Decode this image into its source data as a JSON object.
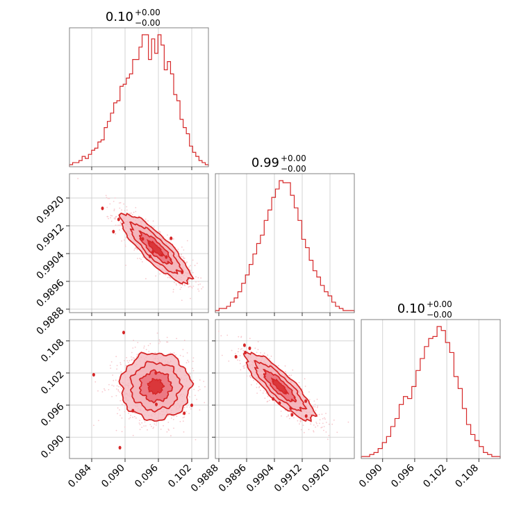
{
  "colors": {
    "series": "#d62728",
    "fill_outer": "#f4b6bc",
    "fill_inner": "#e8616c",
    "points": "#f7c8cd",
    "grid": "#c8c8c8",
    "frame": "#808080"
  },
  "chart_data": [
    {
      "type": "histogram",
      "panel": "diagonal-1",
      "title": {
        "value": "0.10",
        "plus": "+0.00",
        "minus": "−0.00"
      },
      "xlim": [
        0.08,
        0.105
      ],
      "x_ticks": [
        0.084,
        0.09,
        0.096,
        0.102
      ],
      "x_tick_labels": [
        "0.084",
        "0.090",
        "0.096",
        "0.102"
      ],
      "bin_edges_range": [
        0.08,
        0.105
      ],
      "counts": [
        1,
        2,
        2,
        3,
        5,
        4,
        6,
        8,
        9,
        12,
        13,
        19,
        22,
        26,
        31,
        32,
        39,
        40,
        43,
        45,
        52,
        52,
        58,
        64,
        64,
        52,
        62,
        55,
        64,
        59,
        47,
        51,
        45,
        35,
        32,
        23,
        19,
        16,
        10,
        7,
        5,
        3,
        2,
        1
      ],
      "grid": true
    },
    {
      "type": "histogram",
      "panel": "diagonal-2",
      "title": {
        "value": "0.99",
        "plus": "+0.00",
        "minus": "−0.00"
      },
      "xlim": [
        0.9887,
        0.9927
      ],
      "x_ticks": [
        0.9888,
        0.9896,
        0.9904,
        0.9912,
        0.992
      ],
      "x_tick_labels": [
        "0.9888",
        "0.9896",
        "0.9904",
        "0.9912",
        "0.9920"
      ],
      "bin_edges_range": [
        0.9887,
        0.9927
      ],
      "counts": [
        1,
        2,
        2,
        3,
        5,
        7,
        10,
        14,
        18,
        23,
        28,
        33,
        37,
        44,
        49,
        55,
        59,
        63,
        62,
        62,
        56,
        50,
        44,
        35,
        31,
        25,
        20,
        17,
        13,
        10,
        8,
        5,
        3,
        2,
        1,
        1,
        1
      ],
      "grid": true
    },
    {
      "type": "histogram",
      "panel": "diagonal-3",
      "title": {
        "value": "0.10",
        "plus": "+0.00",
        "minus": "−0.00"
      },
      "xlim": [
        0.086,
        0.112
      ],
      "x_ticks": [
        0.09,
        0.096,
        0.102,
        0.108
      ],
      "x_tick_labels": [
        "0.090",
        "0.096",
        "0.102",
        "0.108"
      ],
      "bin_edges_range": [
        0.086,
        0.112
      ],
      "counts": [
        1,
        1,
        2,
        3,
        5,
        8,
        11,
        16,
        20,
        27,
        31,
        30,
        36,
        44,
        50,
        56,
        60,
        61,
        66,
        64,
        58,
        53,
        41,
        35,
        25,
        17,
        12,
        9,
        6,
        3,
        2,
        1,
        1
      ],
      "grid": true
    },
    {
      "type": "contour-scatter",
      "panel": "row2-col1",
      "x_param": 1,
      "y_param": 2,
      "xlim": [
        0.08,
        0.105
      ],
      "ylim": [
        0.9887,
        0.9927
      ],
      "x_ticks": [
        0.084,
        0.09,
        0.096,
        0.102
      ],
      "y_ticks": [
        0.9888,
        0.9896,
        0.9904,
        0.9912,
        0.992
      ],
      "y_tick_labels": [
        "0.9888",
        "0.9896",
        "0.9904",
        "0.9912",
        "0.9920"
      ],
      "center": [
        0.0955,
        0.99055
      ],
      "sd": [
        0.0033,
        0.00052
      ],
      "correlation": -0.85,
      "grid": true
    },
    {
      "type": "contour-scatter",
      "panel": "row3-col1",
      "x_param": 1,
      "y_param": 3,
      "xlim": [
        0.08,
        0.105
      ],
      "ylim": [
        0.086,
        0.112
      ],
      "x_ticks": [
        0.084,
        0.09,
        0.096,
        0.102
      ],
      "y_ticks": [
        0.09,
        0.096,
        0.102,
        0.108
      ],
      "y_tick_labels": [
        "0.090",
        "0.096",
        "0.102",
        "0.108"
      ],
      "center": [
        0.0955,
        0.0995
      ],
      "sd": [
        0.0033,
        0.0033
      ],
      "correlation": 0.0,
      "grid": true
    },
    {
      "type": "contour-scatter",
      "panel": "row3-col2",
      "x_param": 2,
      "y_param": 3,
      "xlim": [
        0.9887,
        0.9927
      ],
      "ylim": [
        0.086,
        0.112
      ],
      "x_ticks": [
        0.9888,
        0.9896,
        0.9904,
        0.9912,
        0.992
      ],
      "y_ticks": [
        0.09,
        0.096,
        0.102,
        0.108
      ],
      "center": [
        0.99055,
        0.0995
      ],
      "sd": [
        0.00052,
        0.0033
      ],
      "correlation": -0.85,
      "grid": true
    }
  ]
}
